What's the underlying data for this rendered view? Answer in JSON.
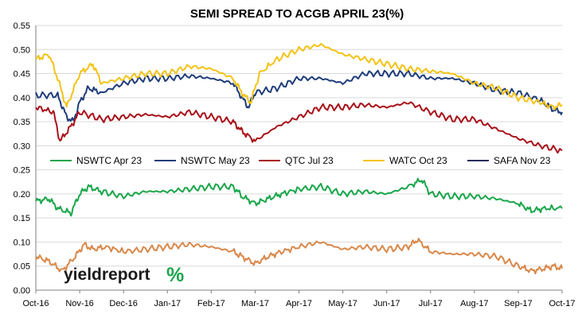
{
  "chart_data": {
    "type": "line",
    "title": "SEMI SPREAD TO ACGB APRIL 23(%)",
    "xlabel": "",
    "ylabel": "",
    "x_ticks": [
      "Oct-16",
      "Nov-16",
      "Dec-16",
      "Jan-17",
      "Feb-17",
      "Mar-17",
      "Apr-17",
      "May-17",
      "Jun-17",
      "Jul-17",
      "Aug-17",
      "Sep-17",
      "Oct-17"
    ],
    "y_ticks": [
      "0.00",
      "0.05",
      "0.10",
      "0.15",
      "0.20",
      "0.25",
      "0.30",
      "0.35",
      "0.40",
      "0.45",
      "0.50",
      "0.55"
    ],
    "ylim": [
      0,
      0.55
    ],
    "grid": true,
    "legend_position": "middle",
    "series": [
      {
        "name": "NSWTC Apr 23",
        "color": "#1aa64b",
        "points": [
          [
            0,
            0.185
          ],
          [
            0.3,
            0.19
          ],
          [
            0.5,
            0.17
          ],
          [
            0.8,
            0.16
          ],
          [
            1.0,
            0.2
          ],
          [
            1.2,
            0.215
          ],
          [
            1.5,
            0.205
          ],
          [
            2,
            0.195
          ],
          [
            2.5,
            0.205
          ],
          [
            3,
            0.205
          ],
          [
            3.5,
            0.21
          ],
          [
            4,
            0.215
          ],
          [
            4.5,
            0.215
          ],
          [
            4.7,
            0.195
          ],
          [
            5,
            0.18
          ],
          [
            5.3,
            0.19
          ],
          [
            5.6,
            0.2
          ],
          [
            6,
            0.21
          ],
          [
            6.5,
            0.215
          ],
          [
            7,
            0.2
          ],
          [
            7.5,
            0.205
          ],
          [
            8,
            0.2
          ],
          [
            8.5,
            0.215
          ],
          [
            8.8,
            0.23
          ],
          [
            9,
            0.2
          ],
          [
            9.5,
            0.195
          ],
          [
            10,
            0.195
          ],
          [
            10.5,
            0.19
          ],
          [
            11,
            0.18
          ],
          [
            11.3,
            0.165
          ],
          [
            11.6,
            0.17
          ],
          [
            12,
            0.17
          ]
        ]
      },
      {
        "name": "NSWTC May 23",
        "color": "#1f3d7a",
        "points": [
          [
            0,
            0.405
          ],
          [
            0.5,
            0.405
          ],
          [
            0.7,
            0.36
          ],
          [
            0.85,
            0.35
          ],
          [
            1.0,
            0.39
          ],
          [
            1.2,
            0.42
          ],
          [
            1.5,
            0.41
          ],
          [
            2,
            0.43
          ],
          [
            2.5,
            0.44
          ],
          [
            3,
            0.44
          ],
          [
            3.5,
            0.445
          ],
          [
            4,
            0.44
          ],
          [
            4.5,
            0.43
          ],
          [
            4.7,
            0.4
          ],
          [
            4.85,
            0.38
          ],
          [
            5.0,
            0.41
          ],
          [
            5.5,
            0.42
          ],
          [
            6,
            0.44
          ],
          [
            6.5,
            0.44
          ],
          [
            7,
            0.43
          ],
          [
            7.5,
            0.45
          ],
          [
            8,
            0.45
          ],
          [
            8.5,
            0.45
          ],
          [
            9,
            0.44
          ],
          [
            9.5,
            0.44
          ],
          [
            10,
            0.43
          ],
          [
            10.5,
            0.415
          ],
          [
            11,
            0.41
          ],
          [
            11.5,
            0.395
          ],
          [
            11.8,
            0.375
          ],
          [
            12,
            0.37
          ]
        ]
      },
      {
        "name": "QTC Jul 23",
        "color": "#a8121a",
        "points": [
          [
            0,
            0.38
          ],
          [
            0.4,
            0.37
          ],
          [
            0.55,
            0.31
          ],
          [
            0.8,
            0.34
          ],
          [
            1.0,
            0.37
          ],
          [
            1.5,
            0.355
          ],
          [
            2,
            0.36
          ],
          [
            2.5,
            0.365
          ],
          [
            3,
            0.36
          ],
          [
            3.5,
            0.37
          ],
          [
            4,
            0.36
          ],
          [
            4.5,
            0.35
          ],
          [
            4.7,
            0.33
          ],
          [
            5.0,
            0.31
          ],
          [
            5.5,
            0.34
          ],
          [
            6,
            0.36
          ],
          [
            6.5,
            0.38
          ],
          [
            7,
            0.38
          ],
          [
            7.5,
            0.385
          ],
          [
            8,
            0.38
          ],
          [
            8.5,
            0.39
          ],
          [
            9,
            0.37
          ],
          [
            9.5,
            0.355
          ],
          [
            10,
            0.355
          ],
          [
            10.5,
            0.335
          ],
          [
            11,
            0.315
          ],
          [
            11.5,
            0.3
          ],
          [
            12,
            0.29
          ]
        ]
      },
      {
        "name": "WATC Oct 23",
        "color": "#f3c317",
        "points": [
          [
            0,
            0.48
          ],
          [
            0.3,
            0.49
          ],
          [
            0.5,
            0.44
          ],
          [
            0.7,
            0.38
          ],
          [
            1.0,
            0.45
          ],
          [
            1.3,
            0.47
          ],
          [
            1.5,
            0.43
          ],
          [
            2,
            0.44
          ],
          [
            2.5,
            0.45
          ],
          [
            3,
            0.45
          ],
          [
            3.5,
            0.465
          ],
          [
            4,
            0.46
          ],
          [
            4.5,
            0.44
          ],
          [
            4.7,
            0.41
          ],
          [
            4.9,
            0.39
          ],
          [
            5.1,
            0.45
          ],
          [
            5.5,
            0.48
          ],
          [
            6,
            0.5
          ],
          [
            6.5,
            0.51
          ],
          [
            7,
            0.49
          ],
          [
            7.5,
            0.48
          ],
          [
            8,
            0.47
          ],
          [
            8.5,
            0.46
          ],
          [
            9,
            0.455
          ],
          [
            9.5,
            0.45
          ],
          [
            10,
            0.43
          ],
          [
            10.5,
            0.42
          ],
          [
            11,
            0.4
          ],
          [
            11.5,
            0.39
          ],
          [
            11.8,
            0.38
          ],
          [
            12,
            0.385
          ]
        ]
      },
      {
        "name": "SAFA Nov 23",
        "color": "#1b2f5c",
        "points": []
      },
      {
        "name": "",
        "color": "#d9884a",
        "points": [
          [
            0,
            0.07
          ],
          [
            0.3,
            0.06
          ],
          [
            0.6,
            0.04
          ],
          [
            0.9,
            0.07
          ],
          [
            1.1,
            0.095
          ],
          [
            1.3,
            0.085
          ],
          [
            1.6,
            0.09
          ],
          [
            2,
            0.08
          ],
          [
            2.5,
            0.085
          ],
          [
            3,
            0.09
          ],
          [
            3.5,
            0.095
          ],
          [
            4,
            0.09
          ],
          [
            4.5,
            0.08
          ],
          [
            4.7,
            0.07
          ],
          [
            5,
            0.055
          ],
          [
            5.3,
            0.07
          ],
          [
            5.6,
            0.08
          ],
          [
            6,
            0.09
          ],
          [
            6.5,
            0.1
          ],
          [
            7,
            0.085
          ],
          [
            7.5,
            0.09
          ],
          [
            8,
            0.085
          ],
          [
            8.5,
            0.09
          ],
          [
            8.7,
            0.105
          ],
          [
            9,
            0.08
          ],
          [
            9.5,
            0.075
          ],
          [
            10,
            0.075
          ],
          [
            10.5,
            0.07
          ],
          [
            11,
            0.05
          ],
          [
            11.3,
            0.04
          ],
          [
            11.6,
            0.045
          ],
          [
            11.8,
            0.05
          ],
          [
            12,
            0.045
          ]
        ]
      }
    ]
  },
  "logo": {
    "word": "yieldreport",
    "symbol": "%",
    "symbol_color": "#1aa64b"
  }
}
